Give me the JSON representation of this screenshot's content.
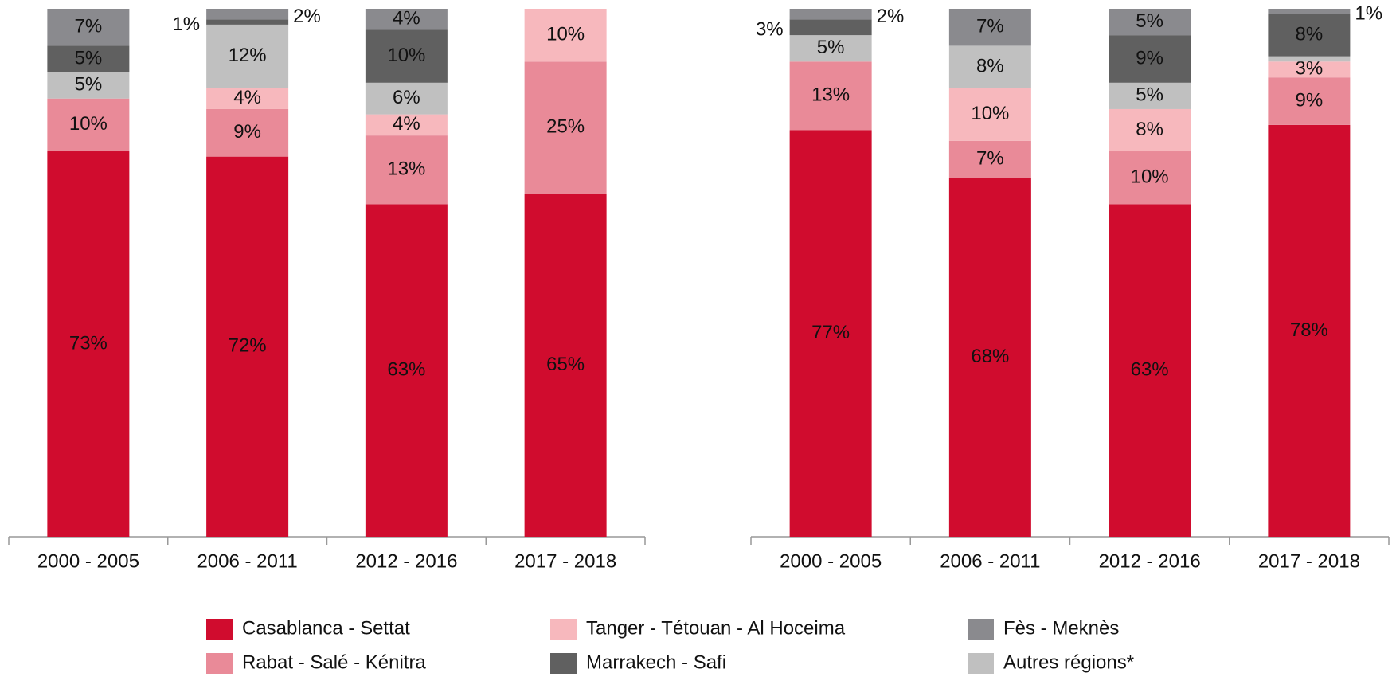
{
  "chart_data": [
    {
      "type": "stacked_bar",
      "ylim": [
        0,
        100
      ],
      "categories": [
        "2000 - 2005",
        "2006 - 2011",
        "2012 - 2016",
        "2017 - 2018"
      ],
      "series": [
        {
          "name": "Casablanca - Settat",
          "color": "#d00c2e",
          "values": [
            73,
            72,
            63,
            65
          ],
          "value_labels": [
            "73%",
            "72%",
            "63%",
            "65%"
          ]
        },
        {
          "name": "Rabat - Salé - Kénitra",
          "color": "#e98a98",
          "values": [
            10,
            9,
            13,
            25
          ],
          "value_labels": [
            "10%",
            "9%",
            "13%",
            "25%"
          ]
        },
        {
          "name": "Tanger - Tétouan - Al Hoceima",
          "color": "#f7b8bd",
          "values": [
            0,
            4,
            4,
            10
          ],
          "value_labels": [
            null,
            "4%",
            "4%",
            "10%"
          ]
        },
        {
          "name": "Autres régions*",
          "color": "#c0c0c0",
          "values": [
            5,
            12,
            6,
            0
          ],
          "value_labels": [
            "5%",
            "12%",
            "6%",
            null
          ]
        },
        {
          "name": "Marrakech - Safi",
          "color": "#606060",
          "values": [
            5,
            1,
            10,
            0
          ],
          "value_labels": [
            "5%",
            "1%",
            "10%",
            null
          ]
        },
        {
          "name": "Fès - Meknès",
          "color": "#8a8a8e",
          "values": [
            7,
            2,
            4,
            0
          ],
          "value_labels": [
            "7%",
            "2%",
            "4%",
            null
          ]
        }
      ]
    },
    {
      "type": "stacked_bar",
      "ylim": [
        0,
        100
      ],
      "categories": [
        "2000 - 2005",
        "2006 - 2011",
        "2012 - 2016",
        "2017 - 2018"
      ],
      "series": [
        {
          "color": "#d00c2e",
          "values": [
            77,
            68,
            63,
            78
          ],
          "value_labels": [
            "77%",
            "68%",
            "63%",
            "78%"
          ]
        },
        {
          "color": "#e98a98",
          "values": [
            13,
            7,
            10,
            9
          ],
          "value_labels": [
            "13%",
            "7%",
            "10%",
            "9%"
          ]
        },
        {
          "color": "#f7b8bd",
          "values": [
            0,
            10,
            8,
            3
          ],
          "value_labels": [
            null,
            "10%",
            "8%",
            "3%"
          ]
        },
        {
          "color": "#c0c0c0",
          "values": [
            5,
            8,
            5,
            1
          ],
          "value_labels": [
            "5%",
            "8%",
            "5%",
            null
          ]
        },
        {
          "color": "#606060",
          "values": [
            3,
            0,
            9,
            8
          ],
          "value_labels": [
            "3%",
            null,
            "9%",
            "8%"
          ]
        },
        {
          "color": "#8a8a8e",
          "values": [
            2,
            7,
            5,
            1
          ],
          "value_labels": [
            "2%",
            "7%",
            "5%",
            "1%"
          ]
        }
      ]
    }
  ]
}
